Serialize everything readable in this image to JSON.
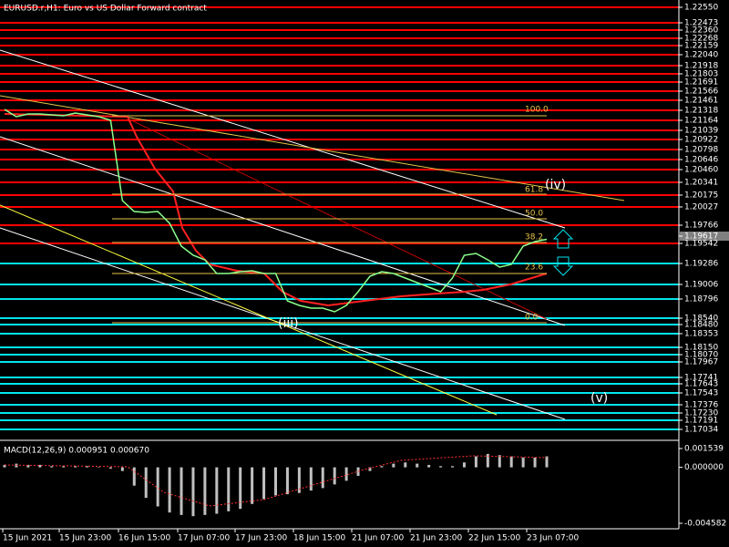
{
  "window": {
    "title": "EURUSD.r,H1: Euro vs US Dollar Forward contract"
  },
  "price_axis": {
    "levels": [
      {
        "label": "1.22550",
        "color": "#ff0000"
      },
      {
        "label": "1.22473",
        "color": "#ff0000"
      },
      {
        "label": "1.22360",
        "color": "#ff0000"
      },
      {
        "label": "1.22268",
        "color": "#ff0000"
      },
      {
        "label": "1.22159",
        "color": "#ff0000"
      },
      {
        "label": "1.22040",
        "color": "#ff0000"
      },
      {
        "label": "1.21918",
        "color": "#ff0000"
      },
      {
        "label": "1.21803",
        "color": "#ff0000"
      },
      {
        "label": "1.21691",
        "color": "#ff0000"
      },
      {
        "label": "1.21566",
        "color": "#ff0000"
      },
      {
        "label": "1.21461",
        "color": "#ff0000"
      },
      {
        "label": "1.21318",
        "color": "#ff0000"
      },
      {
        "label": "1.21164",
        "color": "#ff0000"
      },
      {
        "label": "1.21039",
        "color": "#ff0000"
      },
      {
        "label": "1.20922",
        "color": "#ff0000"
      },
      {
        "label": "1.20798",
        "color": "#ff0000"
      },
      {
        "label": "1.20646",
        "color": "#ff0000"
      },
      {
        "label": "1.20460",
        "color": "#ff0000"
      },
      {
        "label": "1.20341",
        "color": "#ff0000"
      },
      {
        "label": "1.20175",
        "color": "#ff0000"
      },
      {
        "label": "1.20027",
        "color": "#ff0000"
      },
      {
        "label": "1.19766",
        "color": "#ff0000"
      },
      {
        "label": "1.19617",
        "color": "#808080"
      },
      {
        "label": "1.19542",
        "color": "#ff0000"
      },
      {
        "label": "1.19286",
        "color": "#00e5ee"
      },
      {
        "label": "1.19006",
        "color": "#00e5ee"
      },
      {
        "label": "1.18796",
        "color": "#00e5ee"
      },
      {
        "label": "1.18540",
        "color": "#00e5ee"
      },
      {
        "label": "1.18480",
        "color": "#00e5ee"
      },
      {
        "label": "1.18353",
        "color": "#00e5ee"
      },
      {
        "label": "1.18150",
        "color": "#00e5ee"
      },
      {
        "label": "1.18070",
        "color": "#00e5ee"
      },
      {
        "label": "1.17967",
        "color": "#00e5ee"
      },
      {
        "label": "1.17741",
        "color": "#00e5ee"
      },
      {
        "label": "1.17643",
        "color": "#00e5ee"
      },
      {
        "label": "1.17543",
        "color": "#00e5ee"
      },
      {
        "label": "1.17376",
        "color": "#00e5ee"
      },
      {
        "label": "1.17230",
        "color": "#00e5ee"
      },
      {
        "label": "1.17191",
        "color": "#00e5ee"
      },
      {
        "label": "1.17034",
        "color": "#00e5ee"
      }
    ],
    "ylim": [
      1.16921,
      1.22902
    ]
  },
  "time_axis": [
    "15 Jun 2021",
    "15 Jun 23:00",
    "16 Jun 15:00",
    "17 Jun 07:00",
    "17 Jun 23:00",
    "18 Jun 15:00",
    "21 Jun 07:00",
    "21 Jun 23:00",
    "22 Jun 15:00",
    "23 Jun 07:00"
  ],
  "fib_labels": [
    "100.0",
    "61.8",
    "50.0",
    "38.2",
    "23.6",
    "0.0"
  ],
  "wave_labels": [
    "(iv)",
    "(iii)",
    "(v)"
  ],
  "price_series": {
    "color": "#8cff8c",
    "values": [
      1.214,
      1.213,
      1.21338,
      1.21338,
      1.21325,
      1.21313,
      1.2135,
      1.21325,
      1.213,
      1.2125,
      1.20149,
      1.19999,
      1.19987,
      1.19999,
      1.19836,
      1.19524,
      1.19399,
      1.19336,
      1.19148,
      1.19148,
      1.19173,
      1.19186,
      1.19148,
      1.19148,
      1.18773,
      1.1871,
      1.18673,
      1.18673,
      1.18623,
      1.1871,
      1.18898,
      1.19111,
      1.19173,
      1.19148,
      1.19086,
      1.19023,
      1.18961,
      1.18898,
      1.19086,
      1.19399,
      1.19424,
      1.19336,
      1.19236,
      1.19273,
      1.19524,
      1.19586,
      1.19617
    ]
  },
  "macd": {
    "label": "MACD(12,26,9) 0.000951 0.000670",
    "ylim": [
      -0.004582,
      0.001539
    ],
    "yticks": [
      0.001539,
      {
        "value": 0,
        "label": "0.000000"
      },
      -0.004582
    ],
    "color": "#c0c0c0",
    "histogram": [
      0.0002,
      0.0003,
      0.0002,
      0.0002,
      0.0001,
      0.0001,
      0.0001,
      0.0001,
      0,
      -0.0001,
      -0.0003,
      -0.0015,
      -0.0025,
      -0.0032,
      -0.0037,
      -0.0039,
      -0.004,
      -0.0039,
      -0.0038,
      -0.0036,
      -0.0034,
      -0.003,
      -0.0026,
      -0.0023,
      -0.0022,
      -0.0021,
      -0.0019,
      -0.0017,
      -0.0014,
      -0.0011,
      -0.0007,
      -0.0003,
      0.0001,
      0.0003,
      0.0004,
      0.0003,
      0.0002,
      0.0001,
      0.0001,
      0.0004,
      0.0009,
      0.0011,
      0.001,
      0.0009,
      0.0008,
      0.0008,
      0.0009
    ]
  }
}
